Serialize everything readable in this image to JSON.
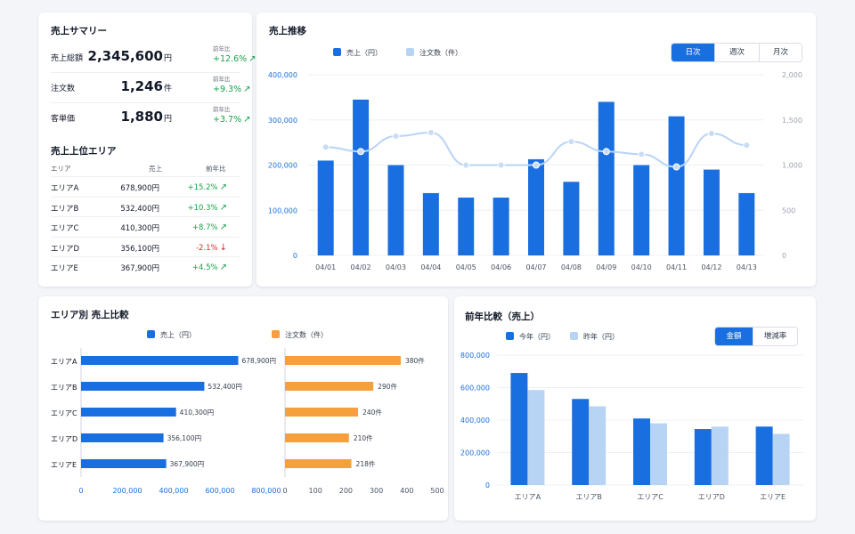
{
  "summary": {
    "title": "売上サマリー",
    "yoy_label": "前年比",
    "rows": [
      {
        "label": "売上総額",
        "value": "2,345,600",
        "unit": "円",
        "yoy": "+12.6%"
      },
      {
        "label": "注文数",
        "value": "1,246",
        "unit": "件",
        "yoy": "+9.3%"
      },
      {
        "label": "客単価",
        "value": "1,880",
        "unit": "円",
        "yoy": "+3.7%"
      }
    ]
  },
  "top_areas": {
    "title": "売上上位エリア",
    "headers": [
      "エリア",
      "売上",
      "前年比"
    ],
    "rows": [
      {
        "area": "エリアA",
        "sales": "678,900円",
        "yoy": "+15.2%",
        "dir": "up"
      },
      {
        "area": "エリアB",
        "sales": "532,400円",
        "yoy": "+10.3%",
        "dir": "up"
      },
      {
        "area": "エリアC",
        "sales": "410,300円",
        "yoy": "+8.7%",
        "dir": "up"
      },
      {
        "area": "エリアD",
        "sales": "356,100円",
        "yoy": "-2.1%",
        "dir": "down"
      },
      {
        "area": "エリアE",
        "sales": "367,900円",
        "yoy": "+4.5%",
        "dir": "up"
      }
    ],
    "icons": {
      "up": "arrow-up-right-icon",
      "down": "arrow-down-icon"
    }
  },
  "trend": {
    "title": "売上推移",
    "legend": [
      "売上（円）",
      "注文数（件）"
    ],
    "tabs": [
      {
        "label": "日次",
        "active": true
      },
      {
        "label": "週次",
        "active": false
      },
      {
        "label": "月次",
        "active": false
      }
    ]
  },
  "area_compare": {
    "title": "エリア別 売上比較",
    "legend": [
      "売上（円）",
      "注文数（件）"
    ]
  },
  "yoy_compare": {
    "title": "前年比較（売上）",
    "legend": [
      "今年（円）",
      "昨年（円）"
    ],
    "tabs": [
      {
        "label": "金額",
        "active": true
      },
      {
        "label": "増減率",
        "active": false
      }
    ]
  },
  "colors": {
    "primary": "#1a6fe0",
    "light": "#b8d4f5",
    "orange": "#f5a03c",
    "up": "#16a34a",
    "down": "#dc2626"
  },
  "chart_data": [
    {
      "type": "bar",
      "title": "売上推移",
      "categories": [
        "04/01",
        "04/02",
        "04/03",
        "04/04",
        "04/05",
        "04/06",
        "04/07",
        "04/08",
        "04/09",
        "04/10",
        "04/11",
        "04/12",
        "04/13"
      ],
      "series": [
        {
          "name": "売上（円）",
          "type": "bar",
          "axis": "left",
          "values": [
            210000,
            345000,
            200000,
            138000,
            128000,
            128000,
            213000,
            163000,
            340000,
            200000,
            308000,
            190000,
            138000
          ]
        },
        {
          "name": "注文数（件）",
          "type": "line",
          "axis": "right",
          "values": [
            1200,
            1150,
            1320,
            1360,
            1000,
            1000,
            1000,
            1260,
            1150,
            1120,
            980,
            1350,
            1220
          ]
        }
      ],
      "ylim": [
        0,
        400000
      ],
      "y_ticks": [
        "0",
        "100,000",
        "200,000",
        "300,000",
        "400,000"
      ],
      "y2lim": [
        0,
        2000
      ],
      "y2_ticks": [
        "0",
        "500",
        "1,000",
        "1,500",
        "2,000"
      ],
      "grid": true,
      "legend": "top-left"
    },
    {
      "type": "bar",
      "orientation": "horizontal",
      "title": "エリア別 売上比較",
      "categories": [
        "エリアA",
        "エリアB",
        "エリアC",
        "エリアD",
        "エリアE"
      ],
      "series": [
        {
          "name": "売上（円）",
          "values": [
            678900,
            532400,
            410300,
            356100,
            367900
          ],
          "labels": [
            "678,900円",
            "532,400円",
            "410,300円",
            "356,100円",
            "367,900円"
          ]
        },
        {
          "name": "注文数（件）",
          "values": [
            380,
            290,
            240,
            210,
            218
          ],
          "labels": [
            "380件",
            "290件",
            "240件",
            "210件",
            "218件"
          ]
        }
      ],
      "xlim": [
        0,
        800000
      ],
      "x_ticks": [
        "0",
        "200,000",
        "400,000",
        "600,000",
        "800,000"
      ],
      "x2lim": [
        0,
        500
      ],
      "x2_ticks": [
        "0",
        "100",
        "200",
        "300",
        "400",
        "500"
      ],
      "legend": "top"
    },
    {
      "type": "bar",
      "title": "前年比較（売上）",
      "categories": [
        "エリアA",
        "エリアB",
        "エリアC",
        "エリアD",
        "エリアE"
      ],
      "series": [
        {
          "name": "今年（円）",
          "values": [
            690000,
            530000,
            410000,
            345000,
            360000
          ]
        },
        {
          "name": "昨年（円）",
          "values": [
            585000,
            485000,
            380000,
            360000,
            315000
          ]
        }
      ],
      "ylim": [
        0,
        800000
      ],
      "y_ticks": [
        "0",
        "200,000",
        "400,000",
        "600,000",
        "800,000"
      ],
      "grid": true,
      "legend": "top-left"
    }
  ]
}
